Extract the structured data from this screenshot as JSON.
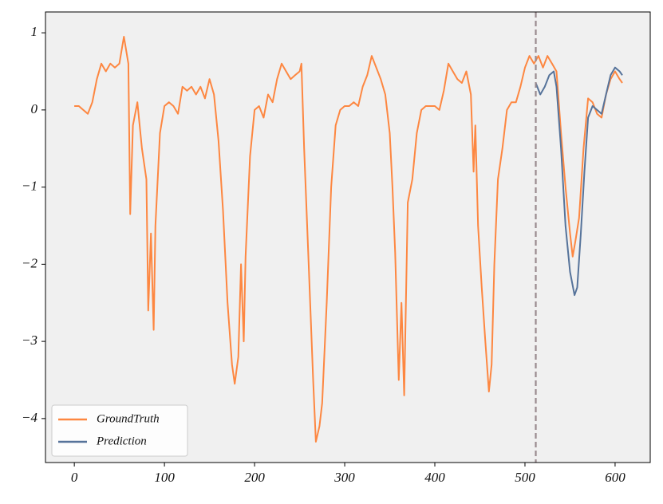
{
  "chart_data": {
    "type": "line",
    "series": [
      {
        "name": "GroundTruth",
        "color": "#fd8741",
        "x": [
          0,
          5,
          10,
          15,
          20,
          25,
          30,
          35,
          40,
          45,
          50,
          55,
          60,
          62,
          65,
          70,
          75,
          80,
          82,
          85,
          88,
          90,
          95,
          100,
          105,
          110,
          115,
          120,
          125,
          130,
          135,
          140,
          145,
          150,
          155,
          160,
          165,
          170,
          175,
          178,
          182,
          185,
          188,
          190,
          195,
          200,
          205,
          210,
          215,
          220,
          225,
          230,
          235,
          240,
          245,
          250,
          252,
          255,
          260,
          265,
          268,
          272,
          275,
          280,
          285,
          290,
          295,
          300,
          305,
          310,
          315,
          320,
          325,
          330,
          335,
          340,
          345,
          350,
          353,
          356,
          360,
          363,
          366,
          370,
          375,
          380,
          385,
          390,
          395,
          400,
          405,
          410,
          415,
          420,
          425,
          430,
          435,
          440,
          443,
          445,
          448,
          452,
          456,
          460,
          463,
          466,
          470,
          475,
          480,
          485,
          490,
          495,
          500,
          505,
          510,
          515,
          520,
          525,
          530,
          535,
          540,
          545,
          550,
          553,
          556,
          560,
          565,
          570,
          575,
          580,
          585,
          590,
          595,
          600,
          605,
          608
        ],
        "values": [
          0.05,
          0.05,
          0.0,
          -0.05,
          0.1,
          0.4,
          0.6,
          0.5,
          0.6,
          0.55,
          0.6,
          0.95,
          0.6,
          -1.35,
          -0.2,
          0.1,
          -0.5,
          -0.9,
          -2.6,
          -1.6,
          -2.85,
          -1.5,
          -0.3,
          0.05,
          0.1,
          0.05,
          -0.05,
          0.3,
          0.25,
          0.3,
          0.2,
          0.3,
          0.15,
          0.4,
          0.2,
          -0.4,
          -1.3,
          -2.5,
          -3.3,
          -3.55,
          -3.2,
          -2.0,
          -3.0,
          -1.9,
          -0.6,
          0.0,
          0.05,
          -0.1,
          0.2,
          0.1,
          0.4,
          0.6,
          0.5,
          0.4,
          0.45,
          0.5,
          0.6,
          -0.5,
          -2.0,
          -3.5,
          -4.3,
          -4.1,
          -3.8,
          -2.5,
          -1.0,
          -0.2,
          0.0,
          0.05,
          0.05,
          0.1,
          0.05,
          0.3,
          0.45,
          0.7,
          0.55,
          0.4,
          0.2,
          -0.3,
          -1.0,
          -1.85,
          -3.5,
          -2.5,
          -3.7,
          -1.2,
          -0.9,
          -0.3,
          0.0,
          0.05,
          0.05,
          0.05,
          0.0,
          0.25,
          0.6,
          0.5,
          0.4,
          0.35,
          0.5,
          0.2,
          -0.8,
          -0.2,
          -1.5,
          -2.3,
          -3.0,
          -3.65,
          -3.3,
          -2.0,
          -0.9,
          -0.5,
          0.0,
          0.1,
          0.1,
          0.3,
          0.55,
          0.7,
          0.6,
          0.7,
          0.55,
          0.7,
          0.6,
          0.5,
          -0.3,
          -1.0,
          -1.6,
          -1.9,
          -1.7,
          -1.4,
          -0.5,
          0.15,
          0.1,
          -0.05,
          -0.1,
          0.2,
          0.4,
          0.5,
          0.4,
          0.35
        ]
      },
      {
        "name": "Prediction",
        "color": "#56739a",
        "x": [
          512,
          517,
          522,
          527,
          532,
          535,
          540,
          545,
          550,
          555,
          558,
          562,
          566,
          570,
          575,
          580,
          585,
          590,
          595,
          600,
          605,
          608
        ],
        "values": [
          0.35,
          0.2,
          0.3,
          0.45,
          0.5,
          0.3,
          -0.5,
          -1.5,
          -2.1,
          -2.4,
          -2.3,
          -1.6,
          -0.8,
          -0.1,
          0.05,
          0.0,
          -0.05,
          0.2,
          0.45,
          0.55,
          0.5,
          0.45
        ]
      }
    ],
    "vline": 512,
    "vline_color": "#9a8a8f",
    "xlim": [
      -32,
      639
    ],
    "ylim": [
      -4.57,
      1.27
    ],
    "xticks": [
      0,
      100,
      200,
      300,
      400,
      500,
      600
    ],
    "yticks": [
      {
        "value": -4,
        "label": "−4"
      },
      {
        "value": -3,
        "label": "−3"
      },
      {
        "value": -2,
        "label": "−2"
      },
      {
        "value": -1,
        "label": "−1"
      },
      0,
      1
    ],
    "legend": "lower left",
    "background": "#f0f0f0"
  }
}
